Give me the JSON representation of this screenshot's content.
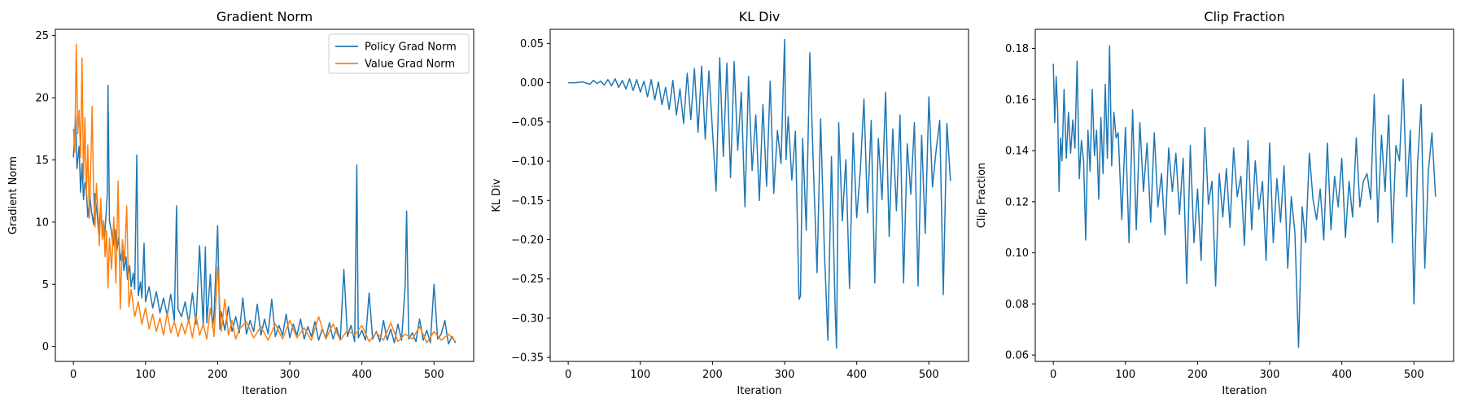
{
  "chart_data": [
    {
      "type": "line",
      "title": "Gradient Norm",
      "xlabel": "Iteration",
      "ylabel": "Gradient Norm",
      "xlim": [
        -25,
        555
      ],
      "ylim": [
        -1.2,
        25.5
      ],
      "xticks": [
        0,
        100,
        200,
        300,
        400,
        500
      ],
      "yticks": [
        0,
        5,
        10,
        15,
        20,
        25
      ],
      "grid": false,
      "legend": "top-right",
      "series": [
        {
          "name": "Policy Grad Norm",
          "color": "#1f77b4",
          "x": [
            0,
            3,
            5,
            8,
            10,
            12,
            14,
            16,
            18,
            20,
            23,
            25,
            28,
            30,
            33,
            35,
            38,
            40,
            43,
            45,
            47,
            48,
            50,
            53,
            55,
            58,
            60,
            63,
            65,
            68,
            70,
            73,
            75,
            78,
            80,
            83,
            85,
            88,
            90,
            93,
            95,
            98,
            100,
            105,
            110,
            115,
            120,
            125,
            130,
            135,
            140,
            143,
            145,
            150,
            155,
            160,
            165,
            170,
            175,
            180,
            183,
            185,
            190,
            193,
            195,
            200,
            203,
            205,
            210,
            215,
            220,
            225,
            230,
            235,
            240,
            245,
            250,
            255,
            260,
            265,
            270,
            275,
            280,
            285,
            290,
            295,
            300,
            305,
            310,
            315,
            320,
            325,
            330,
            335,
            340,
            345,
            350,
            355,
            360,
            365,
            370,
            375,
            380,
            385,
            390,
            393,
            395,
            400,
            405,
            410,
            415,
            420,
            425,
            430,
            435,
            440,
            445,
            450,
            455,
            460,
            462,
            465,
            470,
            475,
            480,
            485,
            490,
            495,
            500,
            505,
            510,
            515,
            520,
            525,
            530
          ],
          "y": [
            15.2,
            18.6,
            14.3,
            16.1,
            12.4,
            14.7,
            11.8,
            13.2,
            12.6,
            10.4,
            12.1,
            10.9,
            9.8,
            12.3,
            10.6,
            9.1,
            11.4,
            9.6,
            8.7,
            10.3,
            12.2,
            21.0,
            10.1,
            9.2,
            8.1,
            9.4,
            7.6,
            8.8,
            6.9,
            7.8,
            6.1,
            7.2,
            5.4,
            6.5,
            4.8,
            5.9,
            4.6,
            15.4,
            4.1,
            5.2,
            3.9,
            8.3,
            3.6,
            4.8,
            3.1,
            4.4,
            2.7,
            3.9,
            2.5,
            4.2,
            2.1,
            11.3,
            3.0,
            2.4,
            3.6,
            1.9,
            4.3,
            1.8,
            8.1,
            1.6,
            8.0,
            1.9,
            5.8,
            1.5,
            2.6,
            9.7,
            1.4,
            2.8,
            1.3,
            3.2,
            1.2,
            2.4,
            1.1,
            3.9,
            1.0,
            2.1,
            1.2,
            3.4,
            0.9,
            2.2,
            1.0,
            3.8,
            0.8,
            1.7,
            0.9,
            2.6,
            0.7,
            1.8,
            0.9,
            2.2,
            0.6,
            1.6,
            0.8,
            2.0,
            0.5,
            1.4,
            0.7,
            1.9,
            0.6,
            1.5,
            0.5,
            6.2,
            0.8,
            1.7,
            0.4,
            14.6,
            0.7,
            1.3,
            0.5,
            4.3,
            0.6,
            1.2,
            0.4,
            2.1,
            0.5,
            1.4,
            0.3,
            1.8,
            0.5,
            4.9,
            10.9,
            0.6,
            1.1,
            0.4,
            2.2,
            0.5,
            1.3,
            0.3,
            5.0,
            0.6,
            1.0,
            2.1,
            0.2,
            0.8,
            0.3
          ]
        },
        {
          "name": "Value Grad Norm",
          "color": "#ff7f0e",
          "x": [
            0,
            2,
            4,
            6,
            8,
            10,
            12,
            14,
            16,
            18,
            20,
            22,
            24,
            26,
            28,
            30,
            32,
            34,
            36,
            38,
            40,
            42,
            44,
            46,
            48,
            50,
            53,
            56,
            59,
            62,
            65,
            68,
            71,
            74,
            77,
            80,
            85,
            90,
            95,
            100,
            105,
            110,
            115,
            120,
            125,
            130,
            135,
            140,
            145,
            150,
            155,
            160,
            165,
            170,
            175,
            180,
            185,
            190,
            195,
            200,
            205,
            210,
            215,
            220,
            225,
            230,
            240,
            250,
            260,
            270,
            280,
            290,
            300,
            310,
            320,
            330,
            340,
            350,
            360,
            370,
            380,
            390,
            400,
            410,
            420,
            430,
            440,
            450,
            460,
            470,
            480,
            490,
            500,
            510,
            520,
            530
          ],
          "y": [
            17.5,
            15.6,
            24.3,
            17.1,
            19.0,
            15.2,
            23.2,
            13.4,
            18.4,
            12.1,
            16.2,
            10.3,
            14.1,
            19.3,
            12.2,
            9.6,
            13.1,
            10.8,
            8.1,
            11.9,
            8.6,
            10.1,
            7.2,
            9.3,
            4.7,
            8.7,
            6.2,
            10.4,
            5.1,
            13.3,
            3.0,
            8.6,
            6.9,
            11.3,
            3.2,
            4.6,
            2.4,
            3.6,
            1.8,
            3.1,
            1.4,
            2.6,
            1.2,
            2.3,
            0.9,
            2.7,
            1.1,
            2.0,
            0.8,
            1.9,
            1.0,
            2.2,
            0.7,
            2.5,
            0.9,
            1.8,
            0.6,
            3.1,
            0.8,
            6.4,
            1.2,
            3.8,
            0.9,
            2.1,
            0.6,
            1.4,
            2.0,
            0.7,
            1.6,
            0.5,
            1.8,
            0.6,
            2.1,
            0.7,
            1.5,
            0.5,
            2.4,
            0.6,
            1.8,
            0.5,
            1.3,
            0.9,
            1.7,
            0.4,
            1.1,
            0.5,
            1.9,
            0.4,
            1.0,
            0.6,
            1.6,
            0.3,
            1.2,
            0.5,
            1.0,
            0.4
          ]
        }
      ]
    },
    {
      "type": "line",
      "title": "KL Div",
      "xlabel": "Iteration",
      "ylabel": "KL Div",
      "xlim": [
        -25,
        555
      ],
      "ylim": [
        -0.355,
        0.068
      ],
      "xticks": [
        0,
        100,
        200,
        300,
        400,
        500
      ],
      "yticks": [
        0.05,
        0.0,
        -0.05,
        -0.1,
        -0.15,
        -0.2,
        -0.25,
        -0.3,
        -0.35
      ],
      "grid": false,
      "series": [
        {
          "name": "",
          "color": "#1f77b4",
          "x": [
            0,
            10,
            20,
            30,
            35,
            40,
            45,
            50,
            55,
            60,
            65,
            70,
            75,
            80,
            85,
            90,
            95,
            100,
            105,
            110,
            115,
            120,
            125,
            130,
            135,
            140,
            145,
            150,
            155,
            160,
            165,
            170,
            175,
            180,
            185,
            190,
            195,
            200,
            205,
            210,
            215,
            220,
            225,
            230,
            235,
            240,
            245,
            250,
            255,
            260,
            265,
            270,
            275,
            280,
            285,
            290,
            295,
            300,
            302,
            305,
            310,
            315,
            320,
            322,
            325,
            330,
            335,
            340,
            345,
            350,
            355,
            360,
            365,
            370,
            372,
            375,
            380,
            385,
            390,
            395,
            400,
            405,
            410,
            415,
            420,
            425,
            430,
            435,
            440,
            445,
            450,
            455,
            460,
            465,
            470,
            475,
            480,
            485,
            490,
            495,
            500,
            505,
            510,
            515,
            520,
            525,
            530
          ],
          "y": [
            0.0,
            0.0,
            0.001,
            -0.002,
            0.003,
            -0.001,
            0.002,
            -0.003,
            0.004,
            -0.004,
            0.005,
            -0.006,
            0.003,
            -0.008,
            0.005,
            -0.01,
            0.004,
            -0.012,
            0.002,
            -0.018,
            0.004,
            -0.022,
            0.001,
            -0.028,
            -0.006,
            -0.034,
            0.003,
            -0.041,
            -0.008,
            -0.052,
            0.012,
            -0.047,
            0.018,
            -0.063,
            0.021,
            -0.072,
            0.015,
            -0.061,
            -0.138,
            0.032,
            -0.094,
            0.025,
            -0.121,
            0.027,
            -0.086,
            -0.012,
            -0.158,
            0.008,
            -0.112,
            -0.041,
            -0.15,
            -0.028,
            -0.132,
            0.002,
            -0.141,
            -0.061,
            -0.103,
            0.055,
            -0.098,
            -0.043,
            -0.124,
            -0.062,
            -0.276,
            -0.272,
            -0.071,
            -0.188,
            0.038,
            -0.112,
            -0.242,
            -0.046,
            -0.211,
            -0.328,
            -0.094,
            -0.287,
            -0.338,
            -0.051,
            -0.176,
            -0.098,
            -0.262,
            -0.064,
            -0.172,
            -0.111,
            -0.021,
            -0.166,
            -0.048,
            -0.255,
            -0.071,
            -0.149,
            -0.012,
            -0.196,
            -0.059,
            -0.163,
            -0.041,
            -0.255,
            -0.078,
            -0.142,
            -0.051,
            -0.259,
            -0.067,
            -0.192,
            -0.018,
            -0.133,
            -0.087,
            -0.048,
            -0.27,
            -0.052,
            -0.125
          ]
        }
      ]
    },
    {
      "type": "line",
      "title": "Clip Fraction",
      "xlabel": "Iteration",
      "ylabel": "Clip Fraction",
      "xlim": [
        -25,
        555
      ],
      "ylim": [
        0.0575,
        0.1875
      ],
      "xticks": [
        0,
        100,
        200,
        300,
        400,
        500
      ],
      "yticks": [
        0.06,
        0.08,
        0.1,
        0.12,
        0.14,
        0.16,
        0.18
      ],
      "grid": false,
      "series": [
        {
          "name": "",
          "color": "#1f77b4",
          "x": [
            0,
            2,
            4,
            6,
            8,
            10,
            12,
            15,
            18,
            21,
            24,
            27,
            30,
            33,
            36,
            39,
            42,
            45,
            48,
            51,
            54,
            57,
            60,
            63,
            66,
            69,
            72,
            75,
            78,
            81,
            84,
            87,
            90,
            95,
            100,
            105,
            110,
            115,
            120,
            125,
            130,
            135,
            140,
            145,
            150,
            155,
            160,
            165,
            170,
            175,
            180,
            185,
            190,
            195,
            200,
            205,
            210,
            215,
            220,
            225,
            230,
            235,
            240,
            245,
            250,
            255,
            260,
            265,
            270,
            275,
            280,
            285,
            290,
            295,
            300,
            305,
            310,
            315,
            320,
            325,
            330,
            335,
            340,
            345,
            350,
            355,
            360,
            365,
            370,
            375,
            380,
            385,
            390,
            395,
            400,
            405,
            410,
            415,
            420,
            425,
            430,
            435,
            440,
            445,
            450,
            455,
            460,
            465,
            470,
            475,
            480,
            485,
            490,
            495,
            500,
            505,
            510,
            515,
            520,
            525,
            530
          ],
          "y": [
            0.174,
            0.151,
            0.169,
            0.156,
            0.124,
            0.145,
            0.136,
            0.164,
            0.137,
            0.155,
            0.139,
            0.152,
            0.141,
            0.175,
            0.129,
            0.144,
            0.136,
            0.105,
            0.148,
            0.132,
            0.164,
            0.138,
            0.148,
            0.121,
            0.153,
            0.131,
            0.166,
            0.137,
            0.181,
            0.134,
            0.155,
            0.145,
            0.147,
            0.113,
            0.149,
            0.104,
            0.156,
            0.109,
            0.151,
            0.124,
            0.143,
            0.112,
            0.147,
            0.118,
            0.131,
            0.107,
            0.141,
            0.124,
            0.139,
            0.115,
            0.137,
            0.088,
            0.142,
            0.104,
            0.125,
            0.097,
            0.149,
            0.119,
            0.128,
            0.087,
            0.131,
            0.114,
            0.133,
            0.11,
            0.141,
            0.122,
            0.13,
            0.103,
            0.144,
            0.109,
            0.136,
            0.117,
            0.128,
            0.097,
            0.143,
            0.104,
            0.129,
            0.112,
            0.134,
            0.094,
            0.122,
            0.108,
            0.063,
            0.118,
            0.104,
            0.139,
            0.121,
            0.113,
            0.125,
            0.105,
            0.143,
            0.109,
            0.13,
            0.118,
            0.137,
            0.106,
            0.128,
            0.114,
            0.145,
            0.118,
            0.128,
            0.131,
            0.121,
            0.162,
            0.112,
            0.146,
            0.124,
            0.154,
            0.104,
            0.142,
            0.136,
            0.168,
            0.122,
            0.148,
            0.08,
            0.135,
            0.158,
            0.094,
            0.132,
            0.147,
            0.122
          ]
        }
      ]
    }
  ]
}
